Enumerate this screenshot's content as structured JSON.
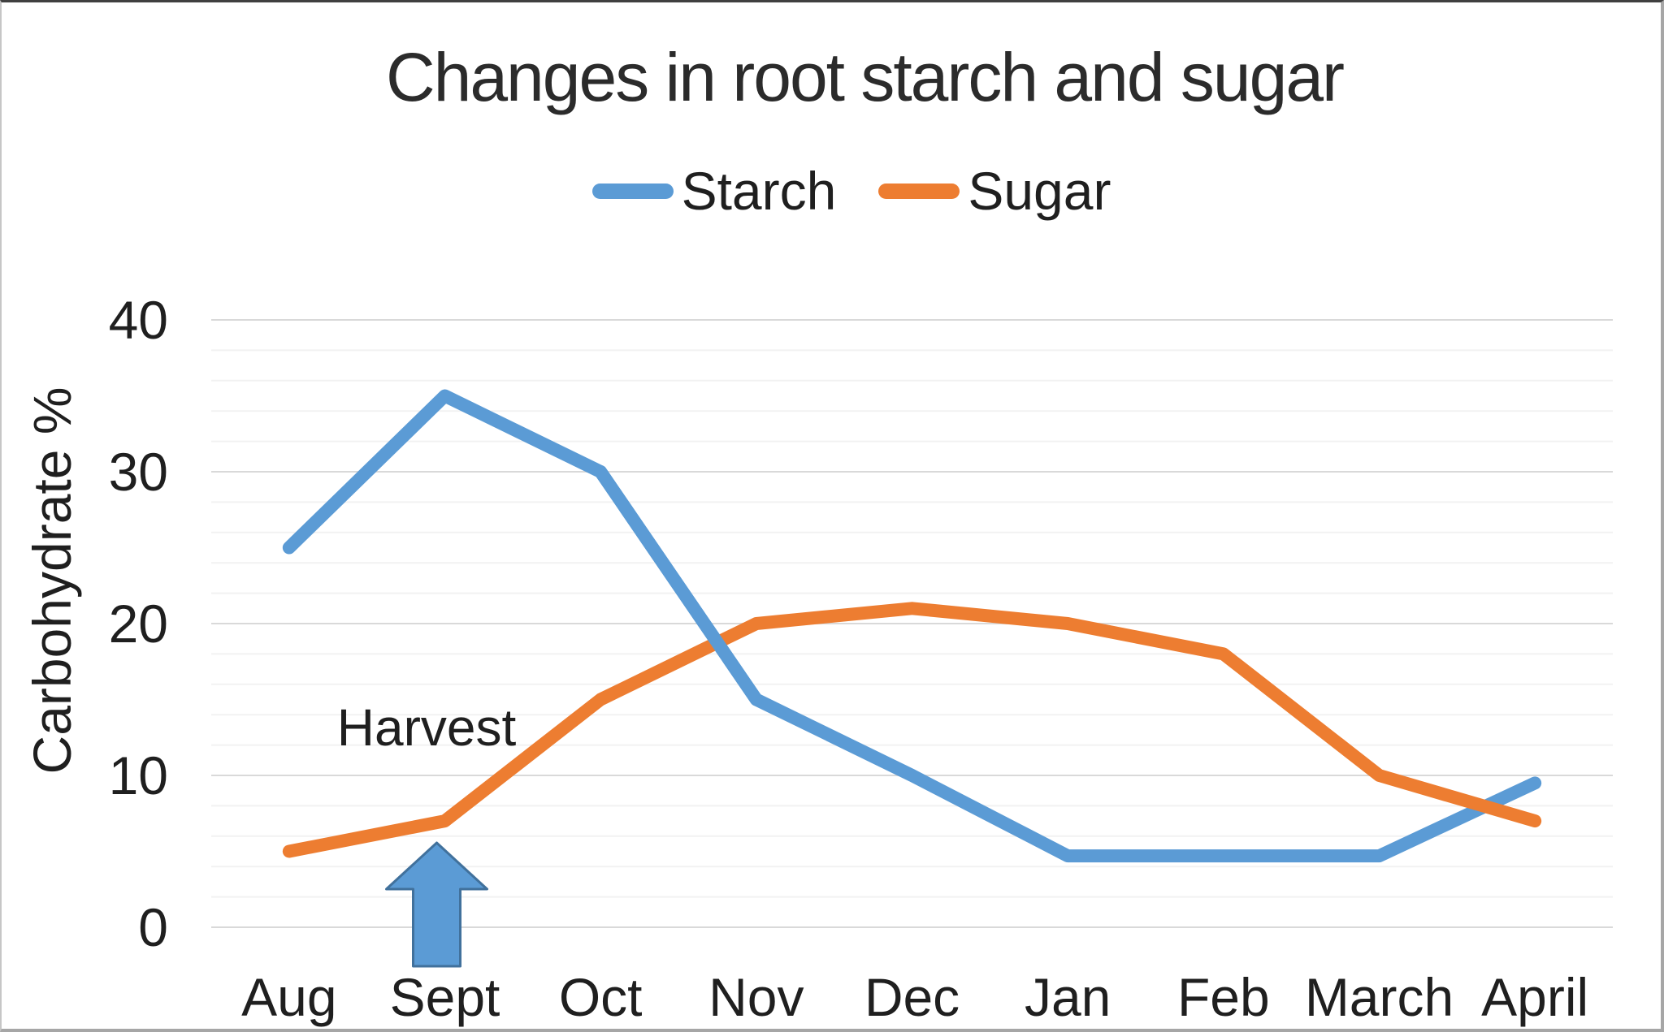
{
  "title": "Changes in root starch and sugar",
  "y_axis": {
    "label": "Carbohydrate %",
    "ticks": [
      40,
      30,
      20,
      10,
      0
    ]
  },
  "legend": {
    "items": [
      {
        "label": "Starch",
        "color": "#5b9bd5"
      },
      {
        "label": "Sugar",
        "color": "#ed7d31"
      }
    ]
  },
  "annotation": {
    "label": "Harvest",
    "arrow_fill": "#5b9bd5",
    "arrow_border": "#41719c"
  },
  "colors": {
    "gridline_major": "#d9d9d9",
    "gridline_minor": "#f2f2f2",
    "starch": "#5b9bd5",
    "sugar": "#ed7d31",
    "text": "#262626"
  },
  "chart_data": {
    "type": "line",
    "title": "Changes in root starch and sugar",
    "categories": [
      "Aug",
      "Sept",
      "Oct",
      "Nov",
      "Dec",
      "Jan",
      "Feb",
      "March",
      "April"
    ],
    "series": [
      {
        "name": "Starch",
        "color": "#5b9bd5",
        "values": [
          25,
          35,
          30,
          15,
          10,
          4.7,
          4.7,
          4.7,
          9.5
        ]
      },
      {
        "name": "Sugar",
        "color": "#ed7d31",
        "values": [
          5,
          7,
          15,
          20,
          21,
          20,
          18,
          10,
          7
        ]
      }
    ],
    "xlabel": "",
    "ylabel": "Carbohydrate %",
    "ylim": [
      0,
      40
    ],
    "y_major_unit": 10,
    "y_minor_unit": 2,
    "grid": true,
    "legend_position": "top",
    "annotations": [
      {
        "text": "Harvest",
        "category": "Sept",
        "type": "up-arrow"
      }
    ]
  }
}
